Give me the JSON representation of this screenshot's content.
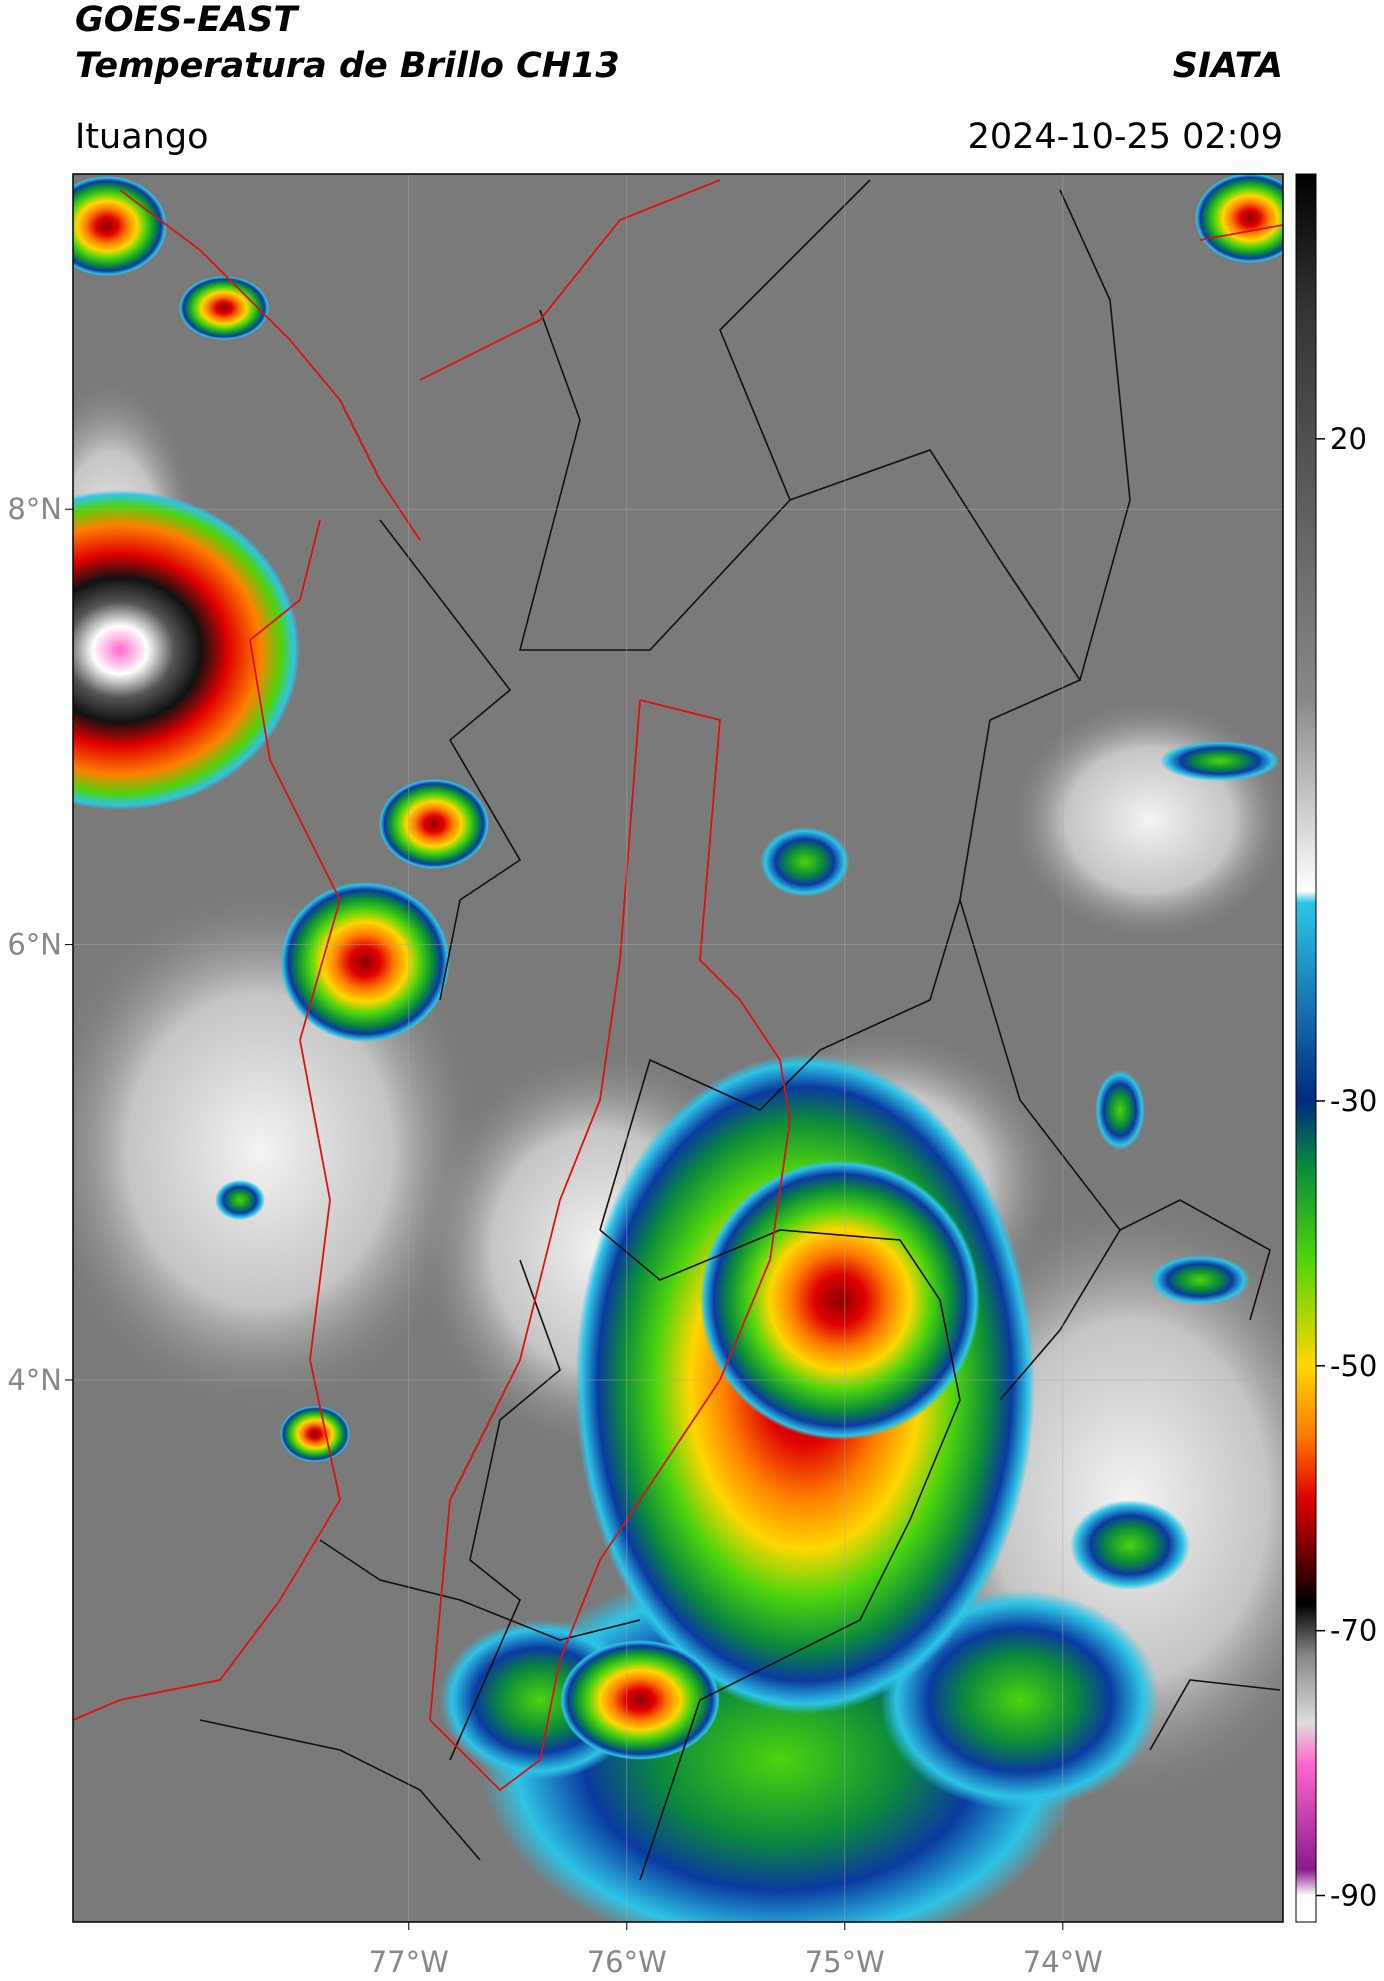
{
  "header": {
    "title_line1": "GOES-EAST",
    "title_line2": "Temperatura de Brillo CH13",
    "organization": "SIATA",
    "location": "Ituango",
    "datetime": "2024-10-25 02:09"
  },
  "map": {
    "xlim": [
      -78.54,
      -72.99
    ],
    "ylim": [
      1.51,
      9.54
    ],
    "grid": true,
    "xticks": [
      {
        "value": -77,
        "label": "77°W"
      },
      {
        "value": -76,
        "label": "76°W"
      },
      {
        "value": -75,
        "label": "75°W"
      },
      {
        "value": -74,
        "label": "74°W"
      }
    ],
    "yticks": [
      {
        "value": 8,
        "label": "8°N"
      },
      {
        "value": 6,
        "label": "6°N"
      },
      {
        "value": 4,
        "label": "4°N"
      }
    ]
  },
  "colorbar": {
    "ylim": [
      -92,
      40
    ],
    "yticks": [
      20,
      -30,
      -50,
      -70,
      -90
    ]
  }
}
